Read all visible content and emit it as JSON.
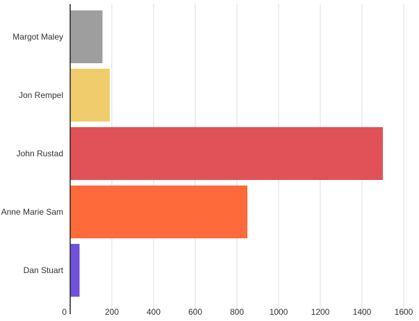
{
  "chart_data": {
    "type": "bar",
    "orientation": "horizontal",
    "categories": [
      "Margot Maley",
      "Jon Rempel",
      "John Rustad",
      "Anne Marie Sam",
      "Dan Stuart"
    ],
    "values": [
      155,
      190,
      1500,
      850,
      45
    ],
    "colors": [
      "#9e9e9e",
      "#f0cc6c",
      "#e05257",
      "#ff6a3a",
      "#6f52d9"
    ],
    "x_ticks": [
      "0",
      "200",
      "400",
      "600",
      "800",
      "1000",
      "1200",
      "1400",
      "1600"
    ],
    "xlim": [
      0,
      1650
    ],
    "grid": true,
    "title": "",
    "xlabel": "",
    "ylabel": ""
  }
}
